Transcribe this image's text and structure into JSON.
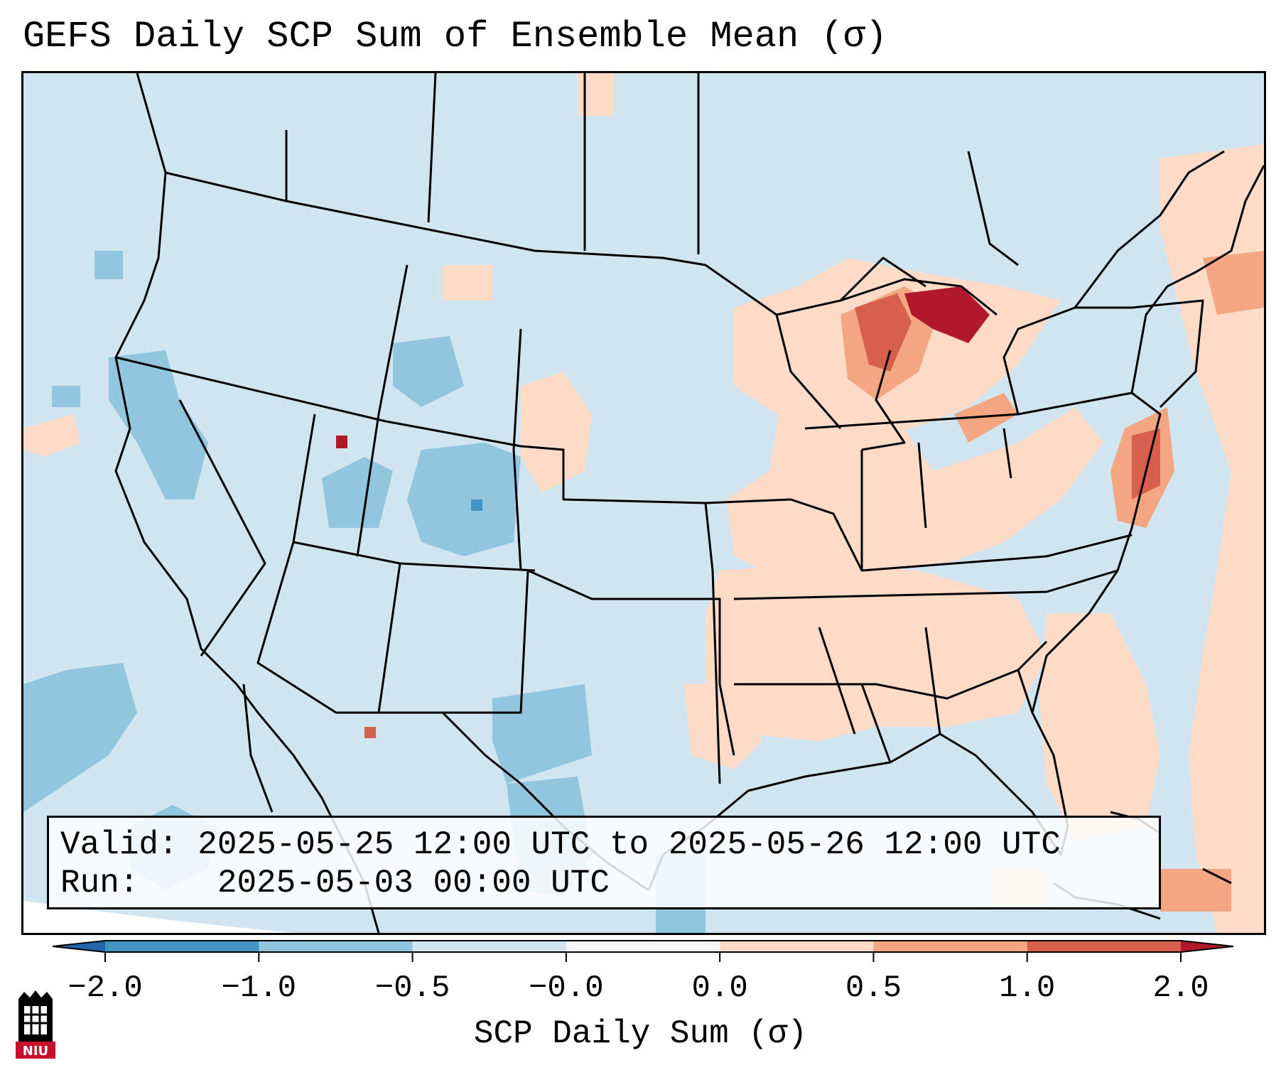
{
  "title": "GEFS Daily SCP Sum of Ensemble Mean (σ)",
  "info": {
    "valid_label": "Valid:",
    "valid_value": "2025-05-25 12:00 UTC to 2025-05-26 12:00 UTC",
    "run_label": "Run:",
    "run_value": "2025-05-03 00:00 UTC"
  },
  "colorbar": {
    "label": "SCP Daily Sum (σ)",
    "ticks": [
      "−2.0",
      "−1.0",
      "−0.5",
      "−0.0",
      "0.0",
      "0.5",
      "1.0",
      "2.0"
    ],
    "bins": [
      {
        "from": -2.0,
        "to": -1.0,
        "color": "#4393c3"
      },
      {
        "from": -1.0,
        "to": -0.5,
        "color": "#92c5de"
      },
      {
        "from": -0.5,
        "to": -0.0,
        "color": "#d1e5f0"
      },
      {
        "from": -0.0,
        "to": 0.0,
        "color": "#f7f7f7"
      },
      {
        "from": 0.0,
        "to": 0.5,
        "color": "#fddbc7"
      },
      {
        "from": 0.5,
        "to": 1.0,
        "color": "#f4a582"
      },
      {
        "from": 1.0,
        "to": 2.0,
        "color": "#d6604d"
      }
    ],
    "under_color": "#2166ac",
    "over_color": "#b2182b"
  },
  "map": {
    "region": "CONUS",
    "background_color": "#d1e5f0",
    "anomaly_regions": [
      {
        "area": "Great Lakes / Michigan",
        "level": "over",
        "color": "#b2182b"
      },
      {
        "area": "Lake Michigan shore",
        "level": "1.0 to 2.0",
        "color": "#d6604d"
      },
      {
        "area": "Upper Midwest to Ohio Valley",
        "level": "0.0 to 0.5",
        "color": "#fddbc7"
      },
      {
        "area": "Lower Mississippi Valley / Southeast",
        "level": "0.0 to 0.5",
        "color": "#fddbc7"
      },
      {
        "area": "Mid-Atlantic coast",
        "level": "0.5 to 1.0",
        "color": "#f4a582"
      },
      {
        "area": "Colorado / Utah",
        "level": "-1.0 to -0.5",
        "color": "#92c5de"
      },
      {
        "area": "West Texas",
        "level": "-1.0 to -0.5",
        "color": "#92c5de"
      },
      {
        "area": "Pacific offshore",
        "level": "-1.0 to -0.5",
        "color": "#92c5de"
      },
      {
        "area": "Western Atlantic",
        "level": "0.0 to 0.5",
        "color": "#fddbc7"
      }
    ]
  },
  "logo": {
    "text": "NIU",
    "icon": "niu-logo-icon"
  }
}
